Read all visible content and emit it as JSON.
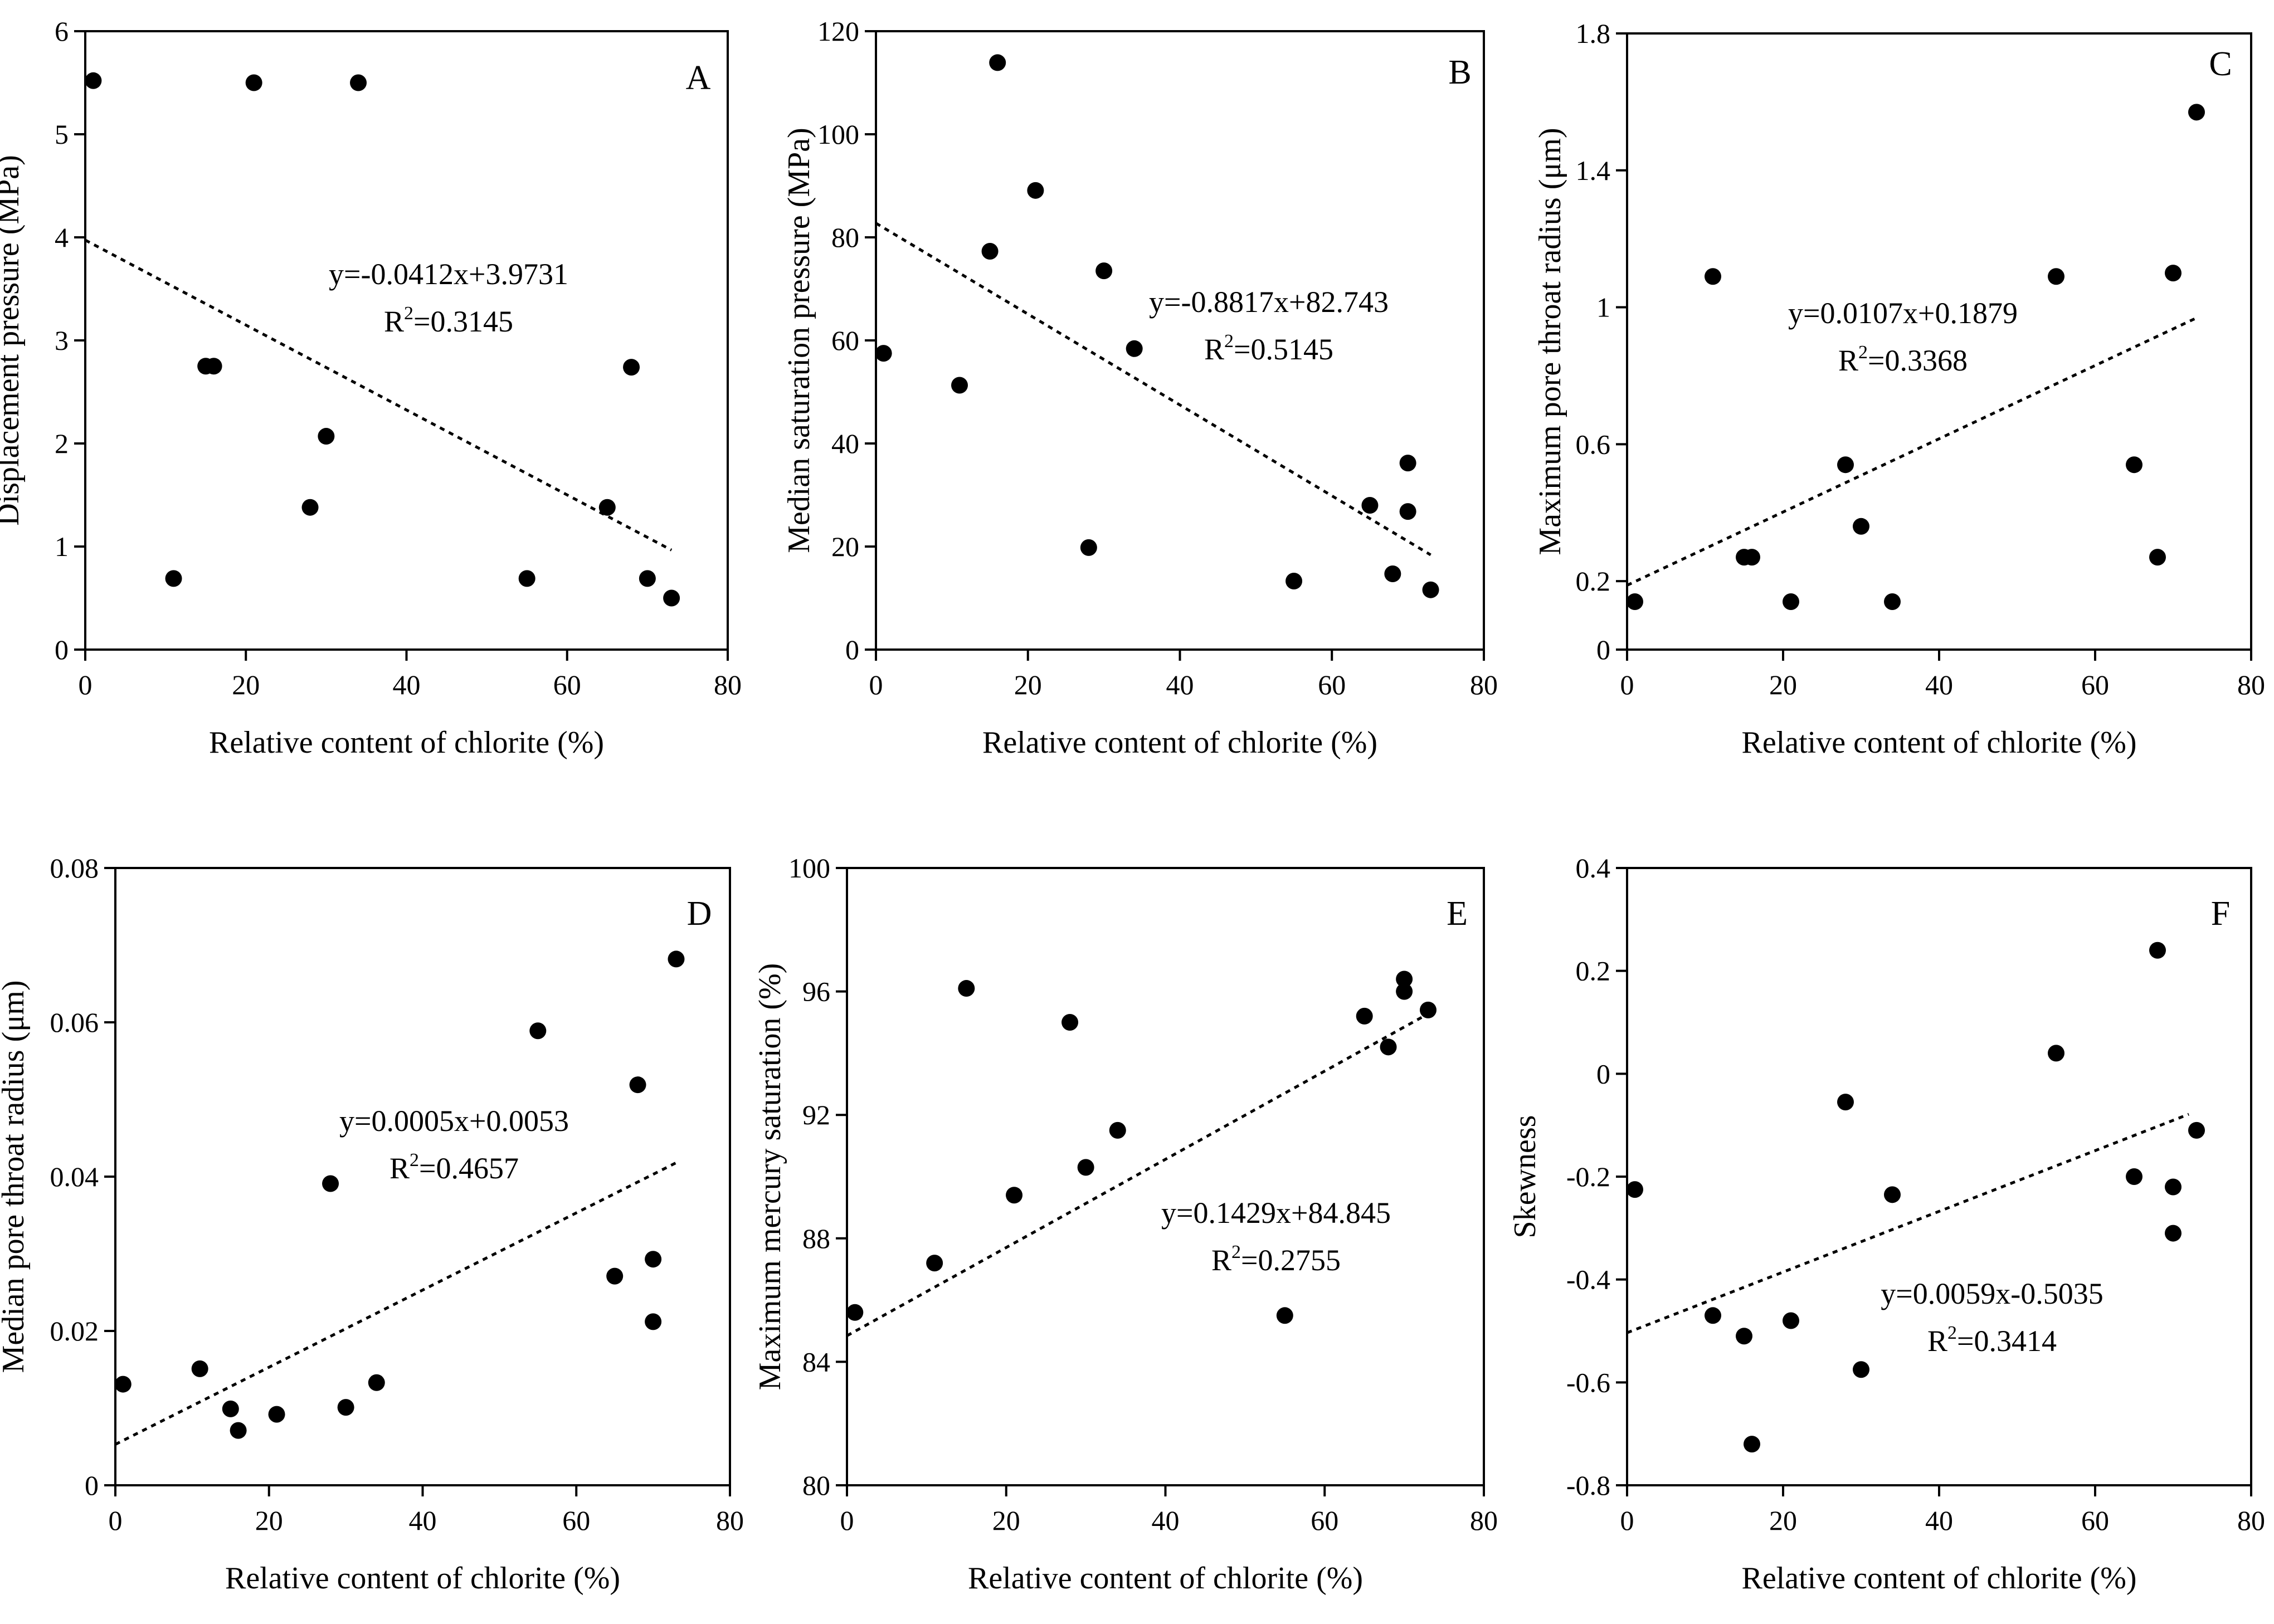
{
  "chart_data": [
    {
      "type": "scatter",
      "panel": "A",
      "xlabel": "Relative content of chlorite (%)",
      "ylabel": "Displacement pressure (MPa)",
      "xlim": [
        0,
        80
      ],
      "ylim": [
        0,
        6
      ],
      "xticks": [
        0,
        20,
        40,
        60,
        80
      ],
      "yticks": [
        0,
        1,
        2,
        3,
        4,
        5,
        6
      ],
      "ytick_labels": [
        "0",
        "1",
        "2",
        "3",
        "4",
        "5",
        "6"
      ],
      "points": [
        [
          1,
          5.52
        ],
        [
          21,
          5.5
        ],
        [
          34,
          5.5
        ],
        [
          15,
          2.75
        ],
        [
          16,
          2.75
        ],
        [
          30,
          2.07
        ],
        [
          28,
          1.38
        ],
        [
          11,
          0.69
        ],
        [
          55,
          0.69
        ],
        [
          65,
          1.38
        ],
        [
          68,
          2.74
        ],
        [
          70,
          0.69
        ],
        [
          73,
          0.5
        ]
      ],
      "fit": {
        "slope": -0.0412,
        "intercept": 3.9731,
        "x_range": [
          0,
          73
        ]
      },
      "equation": "y=-0.0412x+3.9731",
      "r2": "=0.3145"
    },
    {
      "type": "scatter",
      "panel": "B",
      "xlabel": "Relative content of chlorite (%)",
      "ylabel": "Median saturation pressure (MPa)",
      "xlim": [
        0,
        80
      ],
      "ylim": [
        0,
        120
      ],
      "xticks": [
        0,
        20,
        40,
        60,
        80
      ],
      "yticks": [
        0,
        20,
        40,
        60,
        80,
        100,
        120
      ],
      "ytick_labels": [
        "0",
        "20",
        "40",
        "60",
        "80",
        "100",
        "120"
      ],
      "points": [
        [
          1,
          57.5
        ],
        [
          11,
          51.3
        ],
        [
          15,
          77.3
        ],
        [
          16,
          113.9
        ],
        [
          21,
          89.1
        ],
        [
          28,
          19.8
        ],
        [
          30,
          73.5
        ],
        [
          34,
          58.4
        ],
        [
          55,
          13.3
        ],
        [
          65,
          28
        ],
        [
          68,
          14.7
        ],
        [
          70,
          36.2
        ],
        [
          70,
          26.8
        ],
        [
          73,
          11.6
        ]
      ],
      "fit": {
        "slope": -0.8817,
        "intercept": 82.743,
        "x_range": [
          0,
          73
        ]
      },
      "equation": "y=-0.8817x+82.743",
      "r2": "=0.5145"
    },
    {
      "type": "scatter",
      "panel": "C",
      "xlabel": "Relative content of chlorite (%)",
      "ylabel": "Maximum pore throat radius (μm)",
      "xlim": [
        0,
        80
      ],
      "ylim": [
        0,
        1.8
      ],
      "xticks": [
        0,
        20,
        40,
        60,
        80
      ],
      "yticks": [
        0,
        0.2,
        0.6,
        1,
        1.4,
        1.8
      ],
      "ytick_labels": [
        "0",
        "0.2",
        "0.6",
        "1",
        "1.4",
        "1.8"
      ],
      "points": [
        [
          1,
          0.14
        ],
        [
          11,
          1.09
        ],
        [
          15,
          0.27
        ],
        [
          16,
          0.27
        ],
        [
          21,
          0.14
        ],
        [
          28,
          0.54
        ],
        [
          30,
          0.36
        ],
        [
          34,
          0.14
        ],
        [
          55,
          1.09
        ],
        [
          65,
          0.54
        ],
        [
          68,
          0.27
        ],
        [
          70,
          1.1
        ],
        [
          73,
          1.57
        ]
      ],
      "fit": {
        "slope": 0.0107,
        "intercept": 0.1879,
        "x_range": [
          0,
          73
        ]
      },
      "equation": "y=0.0107x+0.1879",
      "r2": "=0.3368"
    },
    {
      "type": "scatter",
      "panel": "D",
      "xlabel": "Relative content of chlorite (%)",
      "ylabel": "Median pore throat radius (μm)",
      "xlim": [
        0,
        80
      ],
      "ylim": [
        0,
        0.08
      ],
      "xticks": [
        0,
        20,
        40,
        60,
        80
      ],
      "yticks": [
        0,
        0.02,
        0.04,
        0.06,
        0.08
      ],
      "ytick_labels": [
        "0",
        "0.02",
        "0.04",
        "0.06",
        "0.08"
      ],
      "points": [
        [
          1,
          0.0131
        ],
        [
          11,
          0.0151
        ],
        [
          15,
          0.0099
        ],
        [
          16,
          0.0071
        ],
        [
          21,
          0.0092
        ],
        [
          28,
          0.0391
        ],
        [
          30,
          0.0101
        ],
        [
          34,
          0.0133
        ],
        [
          55,
          0.0589
        ],
        [
          65,
          0.0271
        ],
        [
          68,
          0.0519
        ],
        [
          70,
          0.0293
        ],
        [
          70,
          0.0212
        ],
        [
          73,
          0.0682
        ]
      ],
      "fit": {
        "slope": 0.0005,
        "intercept": 0.0053,
        "x_range": [
          0,
          73
        ]
      },
      "equation": "y=0.0005x+0.0053",
      "r2": "=0.4657"
    },
    {
      "type": "scatter",
      "panel": "E",
      "xlabel": "Relative content of chlorite (%)",
      "ylabel": "Maximum mercury saturation (%)",
      "xlim": [
        0,
        80
      ],
      "ylim": [
        80,
        100
      ],
      "xticks": [
        0,
        20,
        40,
        60,
        80
      ],
      "yticks": [
        80,
        84,
        88,
        92,
        96,
        100
      ],
      "ytick_labels": [
        "80",
        "84",
        "88",
        "92",
        "96",
        "100"
      ],
      "points": [
        [
          1,
          85.6
        ],
        [
          11,
          87.2
        ],
        [
          15,
          96.1
        ],
        [
          21,
          89.4
        ],
        [
          28,
          95
        ],
        [
          30,
          90.3
        ],
        [
          34,
          91.5
        ],
        [
          55,
          85.5
        ],
        [
          65,
          95.2
        ],
        [
          68,
          94.2
        ],
        [
          70,
          96.4
        ],
        [
          70,
          96
        ],
        [
          73,
          95.4
        ]
      ],
      "fit": {
        "slope": 0.1429,
        "intercept": 84.845,
        "x_range": [
          0,
          73
        ]
      },
      "equation": "y=0.1429x+84.845",
      "r2": "=0.2755"
    },
    {
      "type": "scatter",
      "panel": "F",
      "xlabel": "Relative content of chlorite (%)",
      "ylabel": "Skewness",
      "xlim": [
        0,
        80
      ],
      "ylim": [
        -0.8,
        0.4
      ],
      "xticks": [
        0,
        20,
        40,
        60,
        80
      ],
      "yticks": [
        -0.8,
        -0.6,
        -0.4,
        -0.2,
        0,
        0.2,
        0.4
      ],
      "ytick_labels": [
        "-0.8",
        "-0.6",
        "-0.4",
        "-0.2",
        "0",
        "0.2",
        "0.4"
      ],
      "points": [
        [
          1,
          -0.225
        ],
        [
          11,
          -0.47
        ],
        [
          15,
          -0.51
        ],
        [
          16,
          -0.72
        ],
        [
          21,
          -0.48
        ],
        [
          28,
          -0.055
        ],
        [
          30,
          -0.575
        ],
        [
          34,
          -0.235
        ],
        [
          55,
          0.04
        ],
        [
          65,
          -0.2
        ],
        [
          68,
          0.24
        ],
        [
          70,
          -0.22
        ],
        [
          70,
          -0.31
        ],
        [
          73,
          -0.11
        ]
      ],
      "fit": {
        "slope": 0.0059,
        "intercept": -0.5035,
        "x_range": [
          0,
          72
        ]
      },
      "equation": "y=0.0059x-0.5035",
      "r2": "=0.3414"
    }
  ]
}
